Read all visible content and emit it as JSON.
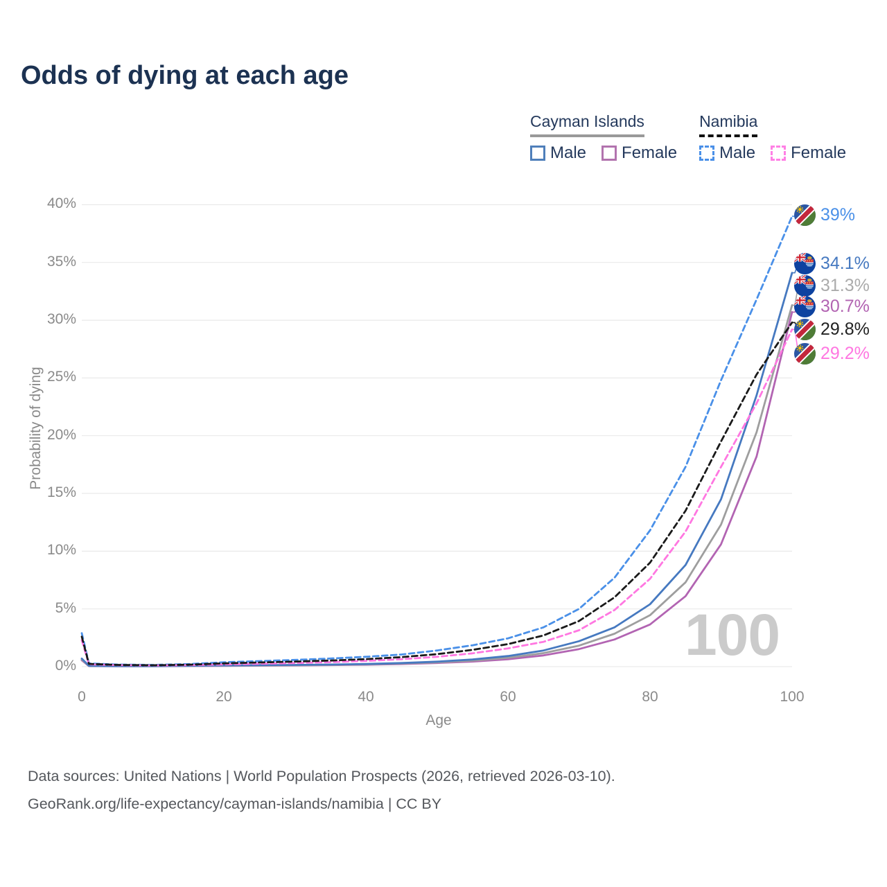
{
  "header": {
    "title": "Odds of dying at each age"
  },
  "legend": {
    "groups": [
      {
        "country": "Cayman Islands",
        "line_style": "solid",
        "line_color": "#999999",
        "items": [
          {
            "label": "Male",
            "color": "#4f7fba",
            "box_style": "solid"
          },
          {
            "label": "Female",
            "color": "#b273ae",
            "box_style": "solid"
          }
        ]
      },
      {
        "country": "Namibia",
        "line_style": "dashed",
        "line_color": "#111111",
        "items": [
          {
            "label": "Male",
            "color": "#4a90e8",
            "box_style": "dashed"
          },
          {
            "label": "Female",
            "color": "#ff80e5",
            "box_style": "dashed"
          }
        ]
      }
    ]
  },
  "chart_data": {
    "type": "line",
    "title": "Odds of dying at each age",
    "xlabel": "Age",
    "ylabel": "Probability of dying",
    "x_ticks": [
      0,
      20,
      40,
      60,
      80,
      100
    ],
    "y_ticks_percent": [
      0,
      5,
      10,
      15,
      20,
      25,
      30,
      35,
      40
    ],
    "xlim": [
      0,
      100
    ],
    "ylim_percent": [
      0,
      40
    ],
    "grid": "horizontal",
    "legend_position": "top-right",
    "age_counter_label": "100",
    "ages": [
      0,
      1,
      5,
      10,
      15,
      20,
      25,
      30,
      35,
      40,
      45,
      50,
      55,
      60,
      65,
      70,
      75,
      80,
      85,
      90,
      95,
      100
    ],
    "series": [
      {
        "id": "namibia_male",
        "country": "Namibia",
        "sex": "Male",
        "style": "dashed",
        "color": "#4a90e8",
        "end_label": "39%",
        "end_value": 39.0,
        "values": [
          2.9,
          0.28,
          0.18,
          0.15,
          0.22,
          0.38,
          0.48,
          0.58,
          0.7,
          0.85,
          1.05,
          1.4,
          1.85,
          2.45,
          3.4,
          5.0,
          7.7,
          11.8,
          17.3,
          24.8,
          31.8,
          39.0
        ]
      },
      {
        "id": "cayman_male",
        "country": "Cayman Islands",
        "sex": "Male",
        "style": "solid",
        "color": "#4679c0",
        "end_label": "34.1%",
        "end_value": 34.1,
        "values": [
          0.7,
          0.07,
          0.05,
          0.05,
          0.08,
          0.11,
          0.13,
          0.15,
          0.18,
          0.23,
          0.31,
          0.43,
          0.62,
          0.92,
          1.4,
          2.2,
          3.4,
          5.4,
          8.8,
          14.5,
          23.5,
          34.1
        ]
      },
      {
        "id": "cayman_total",
        "country": "Cayman Islands",
        "sex": "Both",
        "style": "solid",
        "color": "#9e9e9e",
        "label_color": "#ababab",
        "end_label": "31.3%",
        "end_value": 31.3,
        "values": [
          0.62,
          0.06,
          0.04,
          0.04,
          0.07,
          0.09,
          0.11,
          0.13,
          0.16,
          0.2,
          0.27,
          0.37,
          0.52,
          0.77,
          1.17,
          1.82,
          2.85,
          4.45,
          7.3,
          12.3,
          20.3,
          31.3
        ]
      },
      {
        "id": "cayman_female",
        "country": "Cayman Islands",
        "sex": "Female",
        "style": "solid",
        "color": "#b264b2",
        "end_label": "30.7%",
        "end_value": 30.7,
        "values": [
          0.55,
          0.05,
          0.035,
          0.035,
          0.055,
          0.07,
          0.09,
          0.11,
          0.14,
          0.17,
          0.23,
          0.32,
          0.44,
          0.64,
          0.97,
          1.52,
          2.35,
          3.65,
          6.1,
          10.6,
          18.2,
          30.7
        ]
      },
      {
        "id": "namibia_total",
        "country": "Namibia",
        "sex": "Both",
        "style": "dashed",
        "color": "#1a1a1a",
        "label_color": "#222222",
        "end_label": "29.8%",
        "end_value": 29.8,
        "values": [
          2.6,
          0.24,
          0.15,
          0.12,
          0.17,
          0.28,
          0.36,
          0.44,
          0.53,
          0.65,
          0.82,
          1.08,
          1.45,
          1.95,
          2.7,
          3.95,
          6.0,
          9.0,
          13.5,
          19.5,
          25.3,
          29.8
        ]
      },
      {
        "id": "namibia_female",
        "country": "Namibia",
        "sex": "Female",
        "style": "dashed",
        "color": "#ff77e1",
        "end_label": "29.2%",
        "end_value": 29.2,
        "values": [
          2.3,
          0.2,
          0.13,
          0.1,
          0.13,
          0.19,
          0.25,
          0.31,
          0.39,
          0.5,
          0.64,
          0.85,
          1.15,
          1.58,
          2.15,
          3.15,
          4.9,
          7.6,
          11.7,
          17.3,
          22.8,
          29.2
        ]
      }
    ]
  },
  "footer": {
    "line1": "Data sources: United Nations | World Population Prospects (2026, retrieved 2026-03-10).",
    "line2": "GeoRank.org/life-expectancy/cayman-islands/namibia | CC BY"
  },
  "colors": {
    "title_text": "#1c3252",
    "legend_text": "#24395c",
    "axis_text": "#8a8a8a",
    "gridline": "#e9e9e9",
    "watermark": "#cbcbcb",
    "footer_text": "#54575c"
  }
}
